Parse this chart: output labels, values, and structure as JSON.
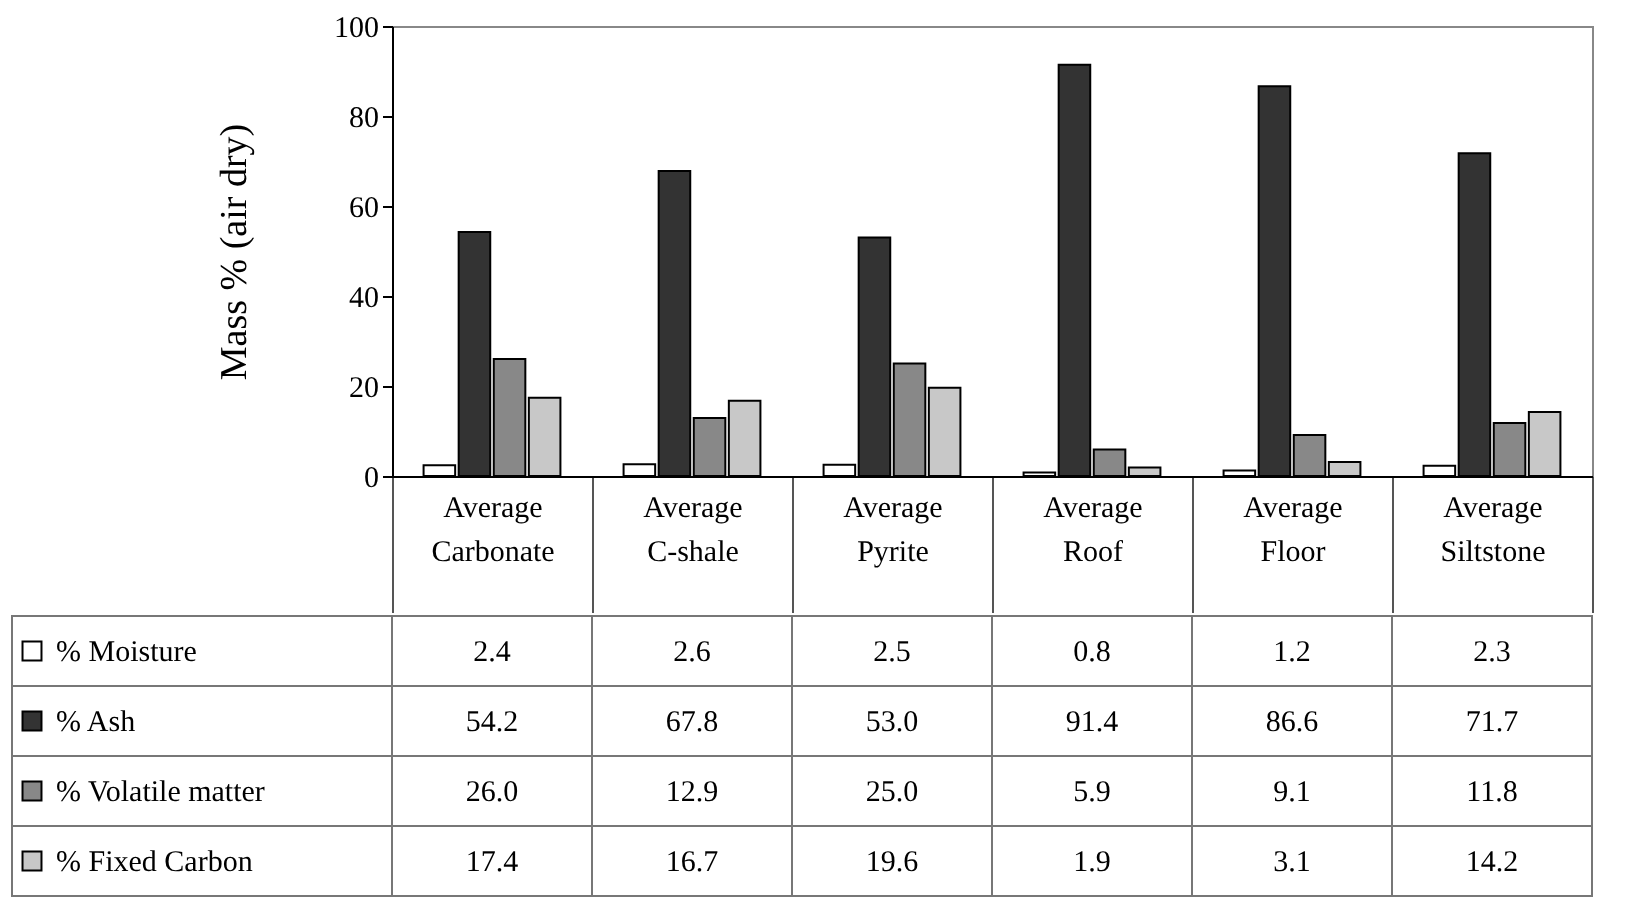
{
  "chart_data": {
    "type": "bar",
    "ylabel": "Mass % (air dry)",
    "categories": [
      "Average Carbonate",
      "Average C-shale",
      "Average Pyrite",
      "Average Roof",
      "Average Floor",
      "Average Siltstone"
    ],
    "series": [
      {
        "name": "% Moisture",
        "color": "#ffffff",
        "values": [
          2.4,
          2.6,
          2.5,
          0.8,
          1.2,
          2.3
        ],
        "value_labels": [
          "2.4",
          "2.6",
          "2.5",
          "0.8",
          "1.2",
          "2.3"
        ]
      },
      {
        "name": "% Ash",
        "color": "#333333",
        "values": [
          54.2,
          67.8,
          53.0,
          91.4,
          86.6,
          71.7
        ],
        "value_labels": [
          "54.2",
          "67.8",
          "53.0",
          "91.4",
          "86.6",
          "71.7"
        ]
      },
      {
        "name": "% Volatile matter",
        "color": "#888888",
        "values": [
          26.0,
          12.9,
          25.0,
          5.9,
          9.1,
          11.8
        ],
        "value_labels": [
          "26.0",
          "12.9",
          "25.0",
          "5.9",
          "9.1",
          "11.8"
        ]
      },
      {
        "name": "% Fixed Carbon",
        "color": "#c8c8c8",
        "values": [
          17.4,
          16.7,
          19.6,
          1.9,
          3.1,
          14.2
        ],
        "value_labels": [
          "17.4",
          "16.7",
          "19.6",
          "1.9",
          "3.1",
          "14.2"
        ]
      }
    ],
    "ylim": [
      0,
      100
    ],
    "yticks": [
      0,
      20,
      40,
      60,
      80,
      100
    ],
    "grid": false,
    "legend": "bottom left"
  }
}
